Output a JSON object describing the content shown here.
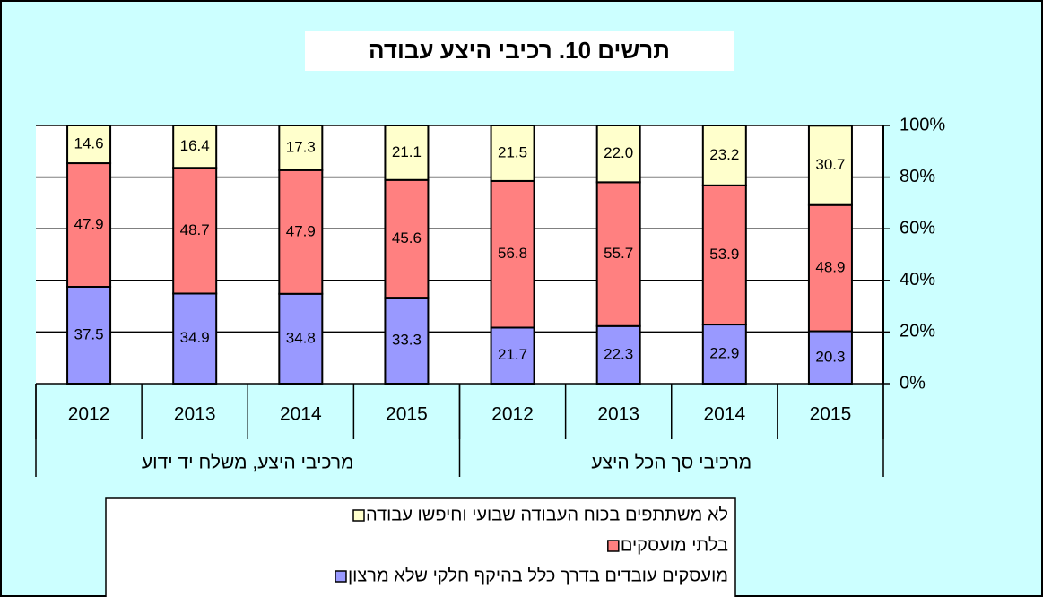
{
  "chart_data": {
    "type": "stacked_bar",
    "title": "תרשים 10. רכיבי היצע עבודה",
    "categories": [
      "2012",
      "2013",
      "2014",
      "2015",
      "2012",
      "2013",
      "2014",
      "2015"
    ],
    "category_groups": [
      "מרכיבי היצע, משלח יד ידוע",
      "מרכיבי סך הכל היצע"
    ],
    "series": [
      {
        "name": "מועסקים עובדים בדרך כלל בהיקף חלקי שלא מרצון",
        "color": "#9999ff",
        "values": [
          37.5,
          34.9,
          34.8,
          33.3,
          21.7,
          22.3,
          22.9,
          20.3
        ]
      },
      {
        "name": "בלתי מועסקים",
        "color": "#ff8080",
        "values": [
          47.9,
          48.7,
          47.9,
          45.6,
          56.8,
          55.7,
          53.9,
          48.9
        ]
      },
      {
        "name": "לא משתתפים בכוח העבודה שבועי וחיפשו עבודה",
        "color": "#ffffcc",
        "values": [
          14.6,
          16.4,
          17.3,
          21.1,
          21.5,
          22.0,
          23.2,
          30.7
        ],
        "value_labels": [
          "14.6",
          "16.4",
          "17.3",
          "21.1",
          "21.5",
          "22.0",
          "23.2",
          "30.7"
        ]
      }
    ],
    "ylim": [
      0,
      100
    ],
    "yticks": [
      {
        "value": 0,
        "label": "0%"
      },
      {
        "value": 20,
        "label": "20%"
      },
      {
        "value": 40,
        "label": "40%"
      },
      {
        "value": 60,
        "label": "60%"
      },
      {
        "value": 80,
        "label": "80%"
      },
      {
        "value": 100,
        "label": "100%"
      }
    ],
    "grid": true
  }
}
